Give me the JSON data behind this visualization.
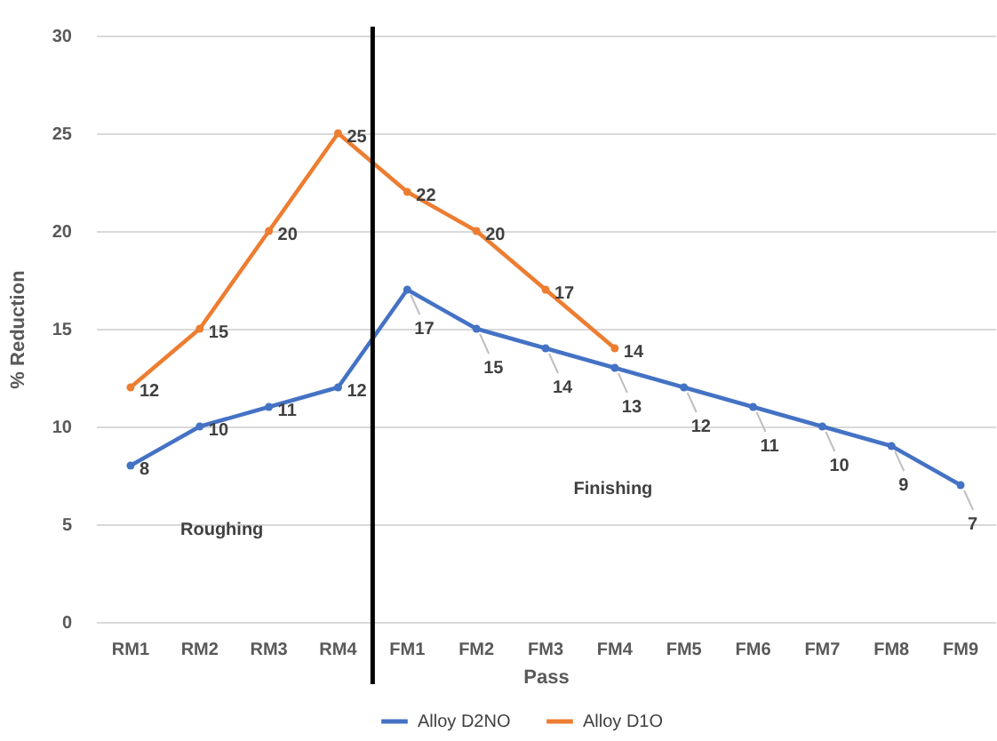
{
  "chart_data": {
    "type": "line",
    "xlabel": "Pass",
    "ylabel": "% Reduction",
    "categories": [
      "RM1",
      "RM2",
      "RM3",
      "RM4",
      "FM1",
      "FM2",
      "FM3",
      "FM4",
      "FM5",
      "FM6",
      "FM7",
      "FM8",
      "FM9"
    ],
    "series": [
      {
        "name": "Alloy D2NO",
        "color": "#4472c4",
        "values": [
          8,
          10,
          11,
          12,
          17,
          15,
          14,
          13,
          12,
          11,
          10,
          9,
          7
        ]
      },
      {
        "name": "Alloy D1O",
        "color": "#ed7d31",
        "values": [
          12,
          15,
          20,
          25,
          22,
          20,
          17,
          14,
          null,
          null,
          null,
          null,
          null
        ]
      }
    ],
    "ylim": [
      0,
      30
    ],
    "yticks": [
      0,
      5,
      10,
      15,
      20,
      25,
      30
    ],
    "grid": "y",
    "legend": "bottom",
    "marker": "circle",
    "line_style": "solid",
    "data_labels": true,
    "ref_lines": [
      {
        "axis": "x",
        "value": "FM1",
        "color": "#000000"
      }
    ],
    "annotations": [
      "Roughing",
      "Finishing"
    ]
  }
}
